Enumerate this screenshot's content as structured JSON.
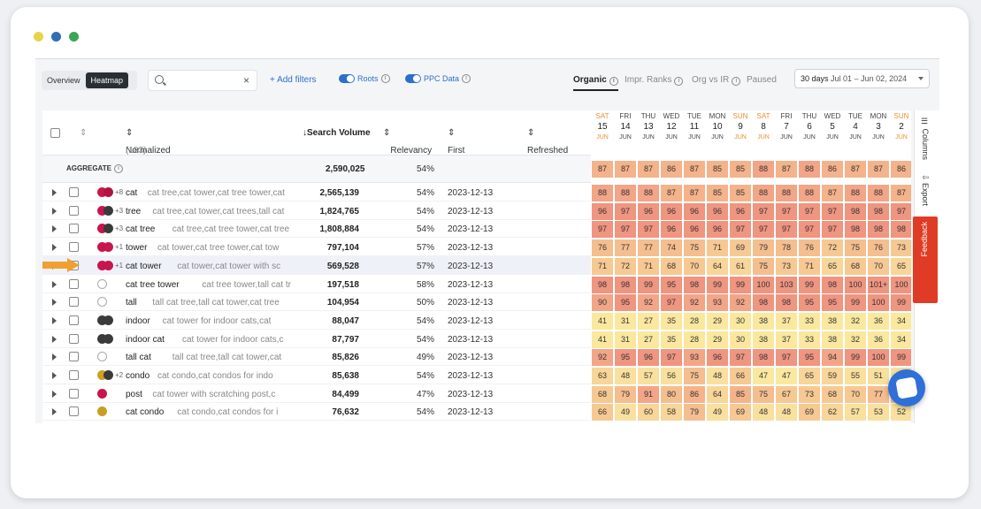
{
  "window": {
    "dots": [
      "#e8d44a",
      "#2f6fb5",
      "#3aa655"
    ]
  },
  "toolbar": {
    "tab_overview": "Overview",
    "tab_heatmap": "Heatmap",
    "search_close": "×",
    "add_filters": "+ Add filters",
    "roots": "Roots",
    "ppc": "PPC Data",
    "views": [
      "Organic",
      "Impr. Ranks",
      "Org vs IR",
      "Paused"
    ],
    "info": "i",
    "range_days": "30 days",
    "range_dates": "Jul 01 – Jun 02, 2024"
  },
  "table": {
    "col_roots": "Normalized Roots",
    "count": "(183)",
    "col_sv": "↓Search Volume",
    "col_rel": "Relevancy",
    "col_fs": "First Seen",
    "col_ref": "Refreshed at",
    "agg_label": "AGGREGATE",
    "agg_sv": "2,590,025",
    "agg_rel": "54%",
    "rows": [
      {
        "kw": "cat",
        "roots": "cat tree,cat tower,cat tree tower,cat",
        "sv": "2,565,139",
        "rel": "54%",
        "fs": "2023-12-13",
        "ic": [
          "#c8154d",
          "#b01340"
        ],
        "plus": "+8"
      },
      {
        "kw": "tree",
        "roots": "cat tree,cat tower,cat trees,tall cat",
        "sv": "1,824,765",
        "rel": "54%",
        "fs": "2023-12-13",
        "ic": [
          "#c8154d",
          "#3a3a3a"
        ],
        "plus": "+3"
      },
      {
        "kw": "cat tree",
        "roots": "cat tree,cat tree tower,cat tree",
        "sv": "1,808,884",
        "rel": "54%",
        "fs": "2023-12-13",
        "ic": [
          "#c8154d",
          "#3a3a3a"
        ],
        "plus": "+3"
      },
      {
        "kw": "tower",
        "roots": "cat tower,cat tree tower,cat tow",
        "sv": "797,104",
        "rel": "57%",
        "fs": "2023-12-13",
        "ic": [
          "#c8154d",
          "#c8154d"
        ],
        "plus": "+1"
      },
      {
        "kw": "cat tower",
        "roots": "cat tower,cat tower with sc",
        "sv": "569,528",
        "rel": "57%",
        "fs": "2023-12-13",
        "ic": [
          "#c8154d",
          "#c8154d"
        ],
        "plus": "+1"
      },
      {
        "kw": "cat tree tower",
        "roots": "cat tree tower,tall cat tr",
        "sv": "197,518",
        "rel": "58%",
        "fs": "2023-12-13",
        "ic": [
          "empty"
        ],
        "plus": ""
      },
      {
        "kw": "tall",
        "roots": "tall cat tree,tall cat tower,cat tree",
        "sv": "104,954",
        "rel": "50%",
        "fs": "2023-12-13",
        "ic": [
          "empty"
        ],
        "plus": ""
      },
      {
        "kw": "indoor",
        "roots": "cat tower for indoor cats,cat",
        "sv": "88,047",
        "rel": "54%",
        "fs": "2023-12-13",
        "ic": [
          "#3a3a3a",
          "#3a3a3a"
        ],
        "plus": ""
      },
      {
        "kw": "indoor cat",
        "roots": "cat tower for indoor cats,c",
        "sv": "87,797",
        "rel": "54%",
        "fs": "2023-12-13",
        "ic": [
          "#3a3a3a",
          "#3a3a3a"
        ],
        "plus": ""
      },
      {
        "kw": "tall cat",
        "roots": "tall cat tree,tall cat tower,cat",
        "sv": "85,826",
        "rel": "49%",
        "fs": "2023-12-13",
        "ic": [
          "empty"
        ],
        "plus": ""
      },
      {
        "kw": "condo",
        "roots": "cat condo,cat condos for indo",
        "sv": "85,638",
        "rel": "54%",
        "fs": "2023-12-13",
        "ic": [
          "#d0a020",
          "#3a3a3a"
        ],
        "plus": "+2"
      },
      {
        "kw": "post",
        "roots": "cat tower with scratching post,c",
        "sv": "84,499",
        "rel": "47%",
        "fs": "2023-12-13",
        "ic": [
          "#c8154d"
        ],
        "plus": ""
      },
      {
        "kw": "cat condo",
        "roots": "cat condo,cat condos for i",
        "sv": "76,632",
        "rel": "54%",
        "fs": "2023-12-13",
        "ic": [
          "#c8a020"
        ],
        "plus": ""
      }
    ]
  },
  "heatmap": {
    "days": [
      {
        "d": "SAT",
        "n": "15",
        "w": true
      },
      {
        "d": "FRI",
        "n": "14",
        "w": false
      },
      {
        "d": "THU",
        "n": "13",
        "w": false
      },
      {
        "d": "WED",
        "n": "12",
        "w": false
      },
      {
        "d": "TUE",
        "n": "11",
        "w": false
      },
      {
        "d": "MON",
        "n": "10",
        "w": false
      },
      {
        "d": "SUN",
        "n": "9",
        "w": true
      },
      {
        "d": "SAT",
        "n": "8",
        "w": true
      },
      {
        "d": "FRI",
        "n": "7",
        "w": false
      },
      {
        "d": "THU",
        "n": "6",
        "w": false
      },
      {
        "d": "WED",
        "n": "5",
        "w": false
      },
      {
        "d": "TUE",
        "n": "4",
        "w": false
      },
      {
        "d": "MON",
        "n": "3",
        "w": false
      },
      {
        "d": "SUN",
        "n": "2",
        "w": true
      }
    ],
    "month": "JUN",
    "agg": [
      "87",
      "87",
      "87",
      "86",
      "87",
      "85",
      "85",
      "88",
      "87",
      "88",
      "86",
      "87",
      "87",
      "86"
    ],
    "rows": [
      [
        "88",
        "88",
        "88",
        "87",
        "87",
        "85",
        "85",
        "88",
        "88",
        "88",
        "87",
        "88",
        "88",
        "87"
      ],
      [
        "96",
        "97",
        "96",
        "96",
        "96",
        "96",
        "96",
        "97",
        "97",
        "97",
        "97",
        "98",
        "98",
        "97"
      ],
      [
        "97",
        "97",
        "97",
        "96",
        "96",
        "96",
        "97",
        "97",
        "97",
        "97",
        "97",
        "98",
        "98",
        "98"
      ],
      [
        "76",
        "77",
        "77",
        "74",
        "75",
        "71",
        "69",
        "79",
        "78",
        "76",
        "72",
        "75",
        "76",
        "73"
      ],
      [
        "71",
        "72",
        "71",
        "68",
        "70",
        "64",
        "61",
        "75",
        "73",
        "71",
        "65",
        "68",
        "70",
        "65"
      ],
      [
        "98",
        "98",
        "99",
        "95",
        "98",
        "99",
        "99",
        "100",
        "103",
        "99",
        "98",
        "100",
        "101+",
        "100"
      ],
      [
        "90",
        "95",
        "92",
        "97",
        "92",
        "93",
        "92",
        "98",
        "98",
        "95",
        "95",
        "99",
        "100",
        "99"
      ],
      [
        "41",
        "31",
        "27",
        "35",
        "28",
        "29",
        "30",
        "38",
        "37",
        "33",
        "38",
        "32",
        "36",
        "34"
      ],
      [
        "41",
        "31",
        "27",
        "35",
        "28",
        "29",
        "30",
        "38",
        "37",
        "33",
        "38",
        "32",
        "36",
        "34"
      ],
      [
        "92",
        "95",
        "96",
        "97",
        "93",
        "96",
        "97",
        "98",
        "97",
        "95",
        "94",
        "99",
        "100",
        "99"
      ],
      [
        "63",
        "48",
        "57",
        "56",
        "75",
        "48",
        "66",
        "47",
        "47",
        "65",
        "59",
        "55",
        "51",
        "51"
      ],
      [
        "68",
        "79",
        "91",
        "80",
        "86",
        "64",
        "85",
        "75",
        "67",
        "73",
        "68",
        "70",
        "77",
        "67"
      ],
      [
        "66",
        "49",
        "60",
        "58",
        "79",
        "49",
        "69",
        "48",
        "48",
        "69",
        "62",
        "57",
        "53",
        "52"
      ]
    ]
  },
  "side": {
    "columns": "Columns",
    "export": "Export",
    "feedback": "Feedback"
  }
}
